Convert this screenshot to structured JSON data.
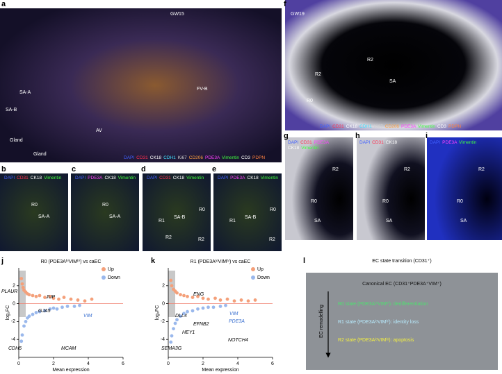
{
  "panels": [
    {
      "letter": "a",
      "labels": [
        "GW15",
        "FV-B",
        "SA-A",
        "SA-B",
        "AV",
        "Gland",
        "Gland"
      ],
      "stains": [
        [
          {
            "text": "DAPI",
            "color": "#4060ff"
          },
          {
            "text": "CD31",
            "color": "#ff3050"
          },
          {
            "text": "CK18",
            "color": "#ffffff"
          },
          {
            "text": "CDH1",
            "color": "#40e0ff"
          },
          {
            "text": "Ki67",
            "color": "#d0d0d0"
          },
          {
            "text": "CD206",
            "color": "#ffa040"
          },
          {
            "text": "PDE3A",
            "color": "#ff40ff"
          },
          {
            "text": "Vimentin",
            "color": "#40ff40"
          },
          {
            "text": "CD3",
            "color": "#ffffff"
          },
          {
            "text": "PDPN",
            "color": "#ff8040"
          }
        ]
      ]
    },
    {
      "letter": "f",
      "labels": [
        "GW19",
        "SA",
        "R2",
        "R2",
        "R0"
      ],
      "stains": [
        [
          {
            "text": "DAPI",
            "color": "#4060ff"
          },
          {
            "text": "CD31",
            "color": "#ff3050"
          },
          {
            "text": "CK18",
            "color": "#ffffff"
          },
          {
            "text": "CDH1",
            "color": "#40e0ff"
          },
          {
            "text": "Ki67",
            "color": "#d0d0d0"
          },
          {
            "text": "CD206",
            "color": "#ffa040"
          },
          {
            "text": "PDE3A",
            "color": "#ff40ff"
          },
          {
            "text": "Vimentin",
            "color": "#40ff40"
          },
          {
            "text": "CD3",
            "color": "#ffffff"
          },
          {
            "text": "PDPN",
            "color": "#ff8040"
          }
        ]
      ]
    },
    {
      "letter": "b",
      "labels": [
        "SA-A",
        "R0"
      ],
      "stains": [
        [
          {
            "text": "DAPI",
            "color": "#4060ff"
          },
          {
            "text": "CD31",
            "color": "#ff3050"
          },
          {
            "text": "CK18",
            "color": "#ffffff"
          },
          {
            "text": "Vimentin",
            "color": "#40ff40"
          }
        ]
      ]
    },
    {
      "letter": "c",
      "labels": [
        "SA-A",
        "R0"
      ],
      "stains": [
        [
          {
            "text": "DAPI",
            "color": "#4060ff"
          },
          {
            "text": "PDE3A",
            "color": "#ff40ff"
          },
          {
            "text": "CK18",
            "color": "#ffffff"
          },
          {
            "text": "Vimentin",
            "color": "#40ff40"
          }
        ]
      ]
    },
    {
      "letter": "d",
      "labels": [
        "SA-B",
        "R1",
        "R0",
        "R2",
        "R2"
      ],
      "stains": [
        [
          {
            "text": "DAPI",
            "color": "#4060ff"
          },
          {
            "text": "CD31",
            "color": "#ff3050"
          },
          {
            "text": "CK18",
            "color": "#ffffff"
          },
          {
            "text": "Vimentin",
            "color": "#40ff40"
          }
        ]
      ]
    },
    {
      "letter": "e",
      "labels": [
        "SA-B",
        "R1",
        "R0",
        "R2"
      ],
      "stains": [
        [
          {
            "text": "DAPI",
            "color": "#4060ff"
          },
          {
            "text": "PDE3A",
            "color": "#ff40ff"
          },
          {
            "text": "CK18",
            "color": "#ffffff"
          },
          {
            "text": "Vimentin",
            "color": "#40ff40"
          }
        ]
      ]
    },
    {
      "letter": "g",
      "labels": [
        "SA",
        "R2",
        "R0"
      ],
      "stains": [
        [
          {
            "text": "DAPI",
            "color": "#4060ff"
          },
          {
            "text": "CD31",
            "color": "#ff3050"
          },
          {
            "text": "PDE3A",
            "color": "#ff40ff"
          }
        ],
        [
          {
            "text": "CK18",
            "color": "#ffffff"
          },
          {
            "text": "Vimentin",
            "color": "#40ff40"
          }
        ]
      ]
    },
    {
      "letter": "h",
      "labels": [
        "SA",
        "R2",
        "R0"
      ],
      "stains": [
        [
          {
            "text": "DAPI",
            "color": "#4060ff"
          },
          {
            "text": "CD31",
            "color": "#ff3050"
          },
          {
            "text": "CK18",
            "color": "#ffffff"
          }
        ]
      ]
    },
    {
      "letter": "i",
      "labels": [
        "SA",
        "R2",
        "R0"
      ],
      "stains": [
        [
          {
            "text": "DAPI",
            "color": "#4060ff"
          },
          {
            "text": "PDE3A",
            "color": "#ff40ff"
          },
          {
            "text": "Vimentin",
            "color": "#40ff40"
          }
        ]
      ]
    }
  ],
  "chart_data": [
    {
      "type": "scatter",
      "letter": "j",
      "title": "R0 (PDE3AʰⁱVIMʰⁱ) vs caEC",
      "x_label": "Mean expression",
      "y_label": "log₂FC",
      "xlim": [
        0,
        6
      ],
      "xticks": [
        0,
        2,
        4,
        6
      ],
      "ylim": [
        -6,
        4
      ],
      "yticks": [
        -4,
        -2,
        0,
        2
      ],
      "series": [
        {
          "name": "Up",
          "color": "#f4a07a",
          "x": [
            0.15,
            0.2,
            0.25,
            0.3,
            0.4,
            0.5,
            0.6,
            0.8,
            1.0,
            1.2,
            1.5,
            1.8,
            2.0,
            2.3,
            2.6,
            3.0,
            3.4,
            3.8,
            4.2
          ],
          "values": [
            2.8,
            2.2,
            1.8,
            1.5,
            1.3,
            1.1,
            1.0,
            0.9,
            0.8,
            0.9,
            0.7,
            0.8,
            0.6,
            0.5,
            0.7,
            0.5,
            0.4,
            0.3,
            0.5
          ]
        },
        {
          "name": "Down",
          "color": "#9ab8ec",
          "x": [
            0.15,
            0.2,
            0.3,
            0.4,
            0.5,
            0.6,
            0.8,
            1.0,
            1.2,
            1.5,
            1.8,
            2.0,
            2.2,
            2.5,
            2.8,
            3.2,
            3.5
          ],
          "values": [
            -4.2,
            -3.5,
            -2.5,
            -2.0,
            -1.6,
            -1.4,
            -1.2,
            -1.0,
            -0.9,
            -0.8,
            -0.6,
            -0.5,
            -0.6,
            -0.4,
            -0.3,
            -0.3,
            -0.2
          ]
        }
      ],
      "annotations": [
        {
          "text": "PLAUR",
          "color": "#000000"
        },
        {
          "text": "CDH5",
          "color": "#000000"
        },
        {
          "text": "JUP",
          "color": "#000000"
        },
        {
          "text": "GJA5",
          "color": "#000000"
        },
        {
          "text": "MCAM",
          "color": "#000000"
        },
        {
          "text": "VIM",
          "color": "#3a70d0"
        }
      ]
    },
    {
      "type": "scatter",
      "letter": "k",
      "title": "R1 (PDE3AˡᵒVIMʰⁱ) vs caEC",
      "x_label": "Mean expression",
      "y_label": "log₂FC",
      "xlim": [
        0,
        6
      ],
      "xticks": [
        0,
        2,
        4,
        6
      ],
      "ylim": [
        -6,
        4
      ],
      "yticks": [
        -4,
        -2,
        0,
        2
      ],
      "series": [
        {
          "name": "Up",
          "color": "#f4a07a",
          "x": [
            0.15,
            0.2,
            0.3,
            0.4,
            0.5,
            0.7,
            0.9,
            1.1,
            1.4,
            1.7,
            2.0,
            2.3,
            2.7,
            3.0,
            3.4,
            3.8,
            4.2,
            4.6,
            5.0
          ],
          "values": [
            2.6,
            2.0,
            1.6,
            1.4,
            1.2,
            1.0,
            0.9,
            0.8,
            0.7,
            0.8,
            0.6,
            0.5,
            0.6,
            0.4,
            0.5,
            0.3,
            0.4,
            0.3,
            0.4
          ]
        },
        {
          "name": "Down",
          "color": "#9ab8ec",
          "x": [
            0.15,
            0.2,
            0.3,
            0.4,
            0.5,
            0.7,
            0.9,
            1.1,
            1.4,
            1.7,
            2.0,
            2.3,
            2.6,
            3.0,
            3.3
          ],
          "values": [
            -4.3,
            -3.6,
            -2.8,
            -2.2,
            -1.8,
            -1.4,
            -1.1,
            -0.9,
            -0.8,
            -0.6,
            -0.5,
            -0.4,
            -0.4,
            -0.3,
            -0.2
          ]
        }
      ],
      "annotations": [
        {
          "text": "ENG",
          "color": "#000000"
        },
        {
          "text": "DLL4",
          "color": "#000000"
        },
        {
          "text": "EFNB2",
          "color": "#000000"
        },
        {
          "text": "VIM",
          "color": "#3a70d0"
        },
        {
          "text": "PDE3A",
          "color": "#3a70d0"
        },
        {
          "text": "HEY1",
          "color": "#000000"
        },
        {
          "text": "NOTCH4",
          "color": "#000000"
        },
        {
          "text": "SEMA3G",
          "color": "#000000"
        }
      ]
    }
  ],
  "panel_l": {
    "letter": "l",
    "title": "EC state transition (CD31⁺)",
    "axis_label": "EC remodelling",
    "states": [
      {
        "text": "Canonical EC (CD31⁺PDE3A⁺VIM⁺)",
        "color": "#111111"
      },
      {
        "text": "R0 state (PDE3AʰⁱVIMʰⁱ): dedifferentiation",
        "color": "#4ee070"
      },
      {
        "text": "R1 state (PDE3AˡᵒVIMʰⁱ): identity loss",
        "color": "#b8ecff"
      },
      {
        "text": "R2 state (PDE3AˡᵒVIMˡᵒ): apoptosis",
        "color": "#f4f040"
      }
    ]
  }
}
